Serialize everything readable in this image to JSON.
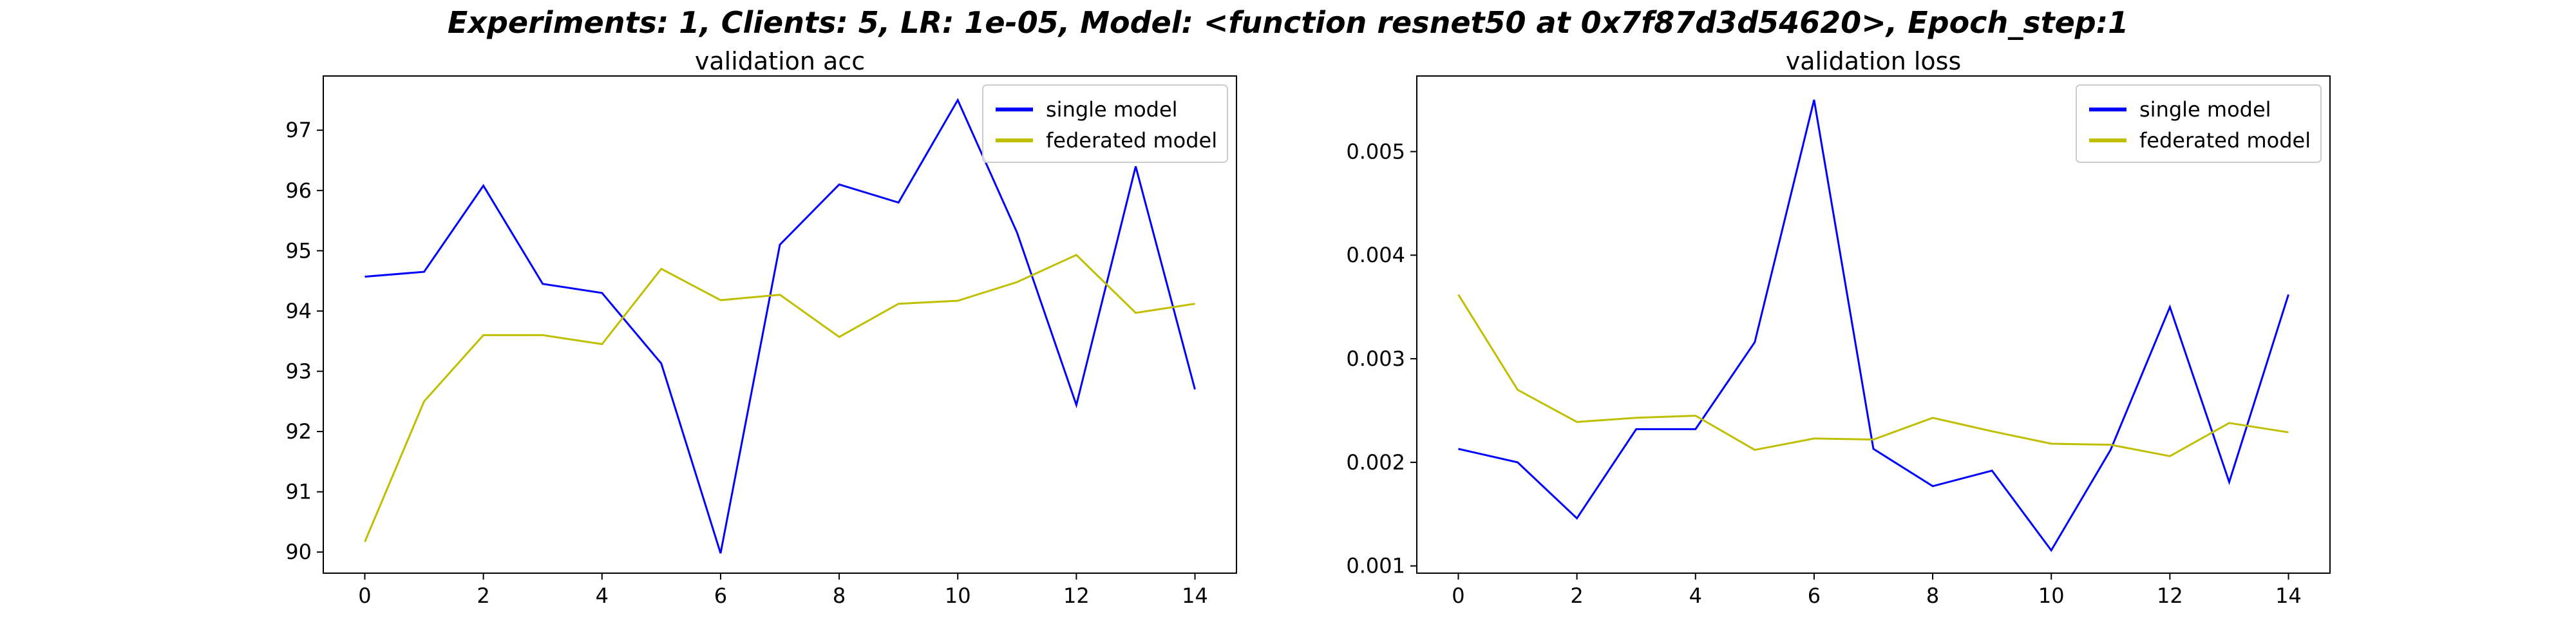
{
  "figure_title": "Experiments: 1, Clients: 5, LR: 1e-05, Model: <function resnet50 at 0x7f87d3d54620>, Epoch_step:1",
  "colors": {
    "single": "#0000ff",
    "federated": "#bfbf00"
  },
  "chart_data": [
    {
      "type": "line",
      "title": "validation acc",
      "xlabel": "",
      "ylabel": "",
      "x": [
        0,
        1,
        2,
        3,
        4,
        5,
        6,
        7,
        8,
        9,
        10,
        11,
        12,
        13,
        14
      ],
      "xlim": [
        -0.7,
        14.7
      ],
      "ylim": [
        89.65,
        97.9
      ],
      "xticks": [
        0,
        2,
        4,
        6,
        8,
        10,
        12,
        14
      ],
      "yticks": [
        90,
        91,
        92,
        93,
        94,
        95,
        96,
        97
      ],
      "yticklabels": [
        "90",
        "91",
        "92",
        "93",
        "94",
        "95",
        "96",
        "97"
      ],
      "legend_position": "top-right",
      "series": [
        {
          "name": "single model",
          "color": "#0000ff",
          "values": [
            94.57,
            94.65,
            96.08,
            94.45,
            94.3,
            93.13,
            89.98,
            95.1,
            96.1,
            95.8,
            97.5,
            95.3,
            92.44,
            96.4,
            92.7
          ]
        },
        {
          "name": "federated model",
          "color": "#bfbf00",
          "values": [
            90.17,
            92.5,
            93.6,
            93.6,
            93.45,
            94.7,
            94.18,
            94.27,
            93.57,
            94.12,
            94.17,
            94.48,
            94.93,
            93.97,
            94.12
          ]
        }
      ]
    },
    {
      "type": "line",
      "title": "validation loss",
      "xlabel": "",
      "ylabel": "",
      "x": [
        0,
        1,
        2,
        3,
        4,
        5,
        6,
        7,
        8,
        9,
        10,
        11,
        12,
        13,
        14
      ],
      "xlim": [
        -0.7,
        14.7
      ],
      "ylim": [
        0.00093,
        0.00573
      ],
      "xticks": [
        0,
        2,
        4,
        6,
        8,
        10,
        12,
        14
      ],
      "yticks": [
        0.001,
        0.002,
        0.003,
        0.004,
        0.005
      ],
      "yticklabels": [
        "0.001",
        "0.002",
        "0.003",
        "0.004",
        "0.005"
      ],
      "legend_position": "top-right",
      "series": [
        {
          "name": "single model",
          "color": "#0000ff",
          "values": [
            0.00213,
            0.002,
            0.00146,
            0.00232,
            0.00232,
            0.00316,
            0.0055,
            0.00213,
            0.00177,
            0.00192,
            0.00115,
            0.00212,
            0.0035,
            0.00181,
            0.00362
          ]
        },
        {
          "name": "federated model",
          "color": "#bfbf00",
          "values": [
            0.00362,
            0.0027,
            0.00239,
            0.00243,
            0.00245,
            0.00212,
            0.00223,
            0.00222,
            0.00243,
            0.0023,
            0.00218,
            0.00217,
            0.00206,
            0.00238,
            0.00229
          ]
        }
      ]
    }
  ]
}
